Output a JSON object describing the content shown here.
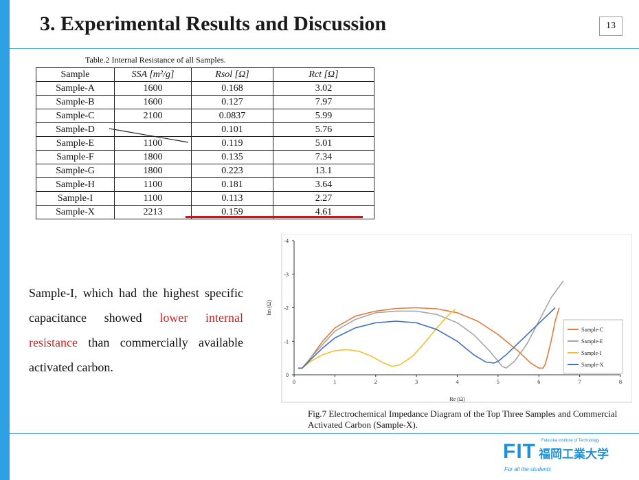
{
  "slide": {
    "title": "3. Experimental Results and Discussion",
    "page_number": "13"
  },
  "table": {
    "caption": "Table.2  Internal Resistance of all Samples.",
    "headers": [
      "Sample",
      "SSA [m²/g]",
      "Rsol  [Ω]",
      "Rct  [Ω]"
    ],
    "rows": [
      [
        "Sample-A",
        "1600",
        "0.168",
        "3.02"
      ],
      [
        "Sample-B",
        "1600",
        "0.127",
        "7.97"
      ],
      [
        "Sample-C",
        "2100",
        "0.0837",
        "5.99"
      ],
      [
        "Sample-D",
        "",
        "0.101",
        "5.76"
      ],
      [
        "Sample-E",
        "1100",
        "0.119",
        "5.01"
      ],
      [
        "Sample-F",
        "1800",
        "0.135",
        "7.34"
      ],
      [
        "Sample-G",
        "1800",
        "0.223",
        "13.1"
      ],
      [
        "Sample-H",
        "1100",
        "0.181",
        "3.64"
      ],
      [
        "Sample-I",
        "1100",
        "0.113",
        "2.27"
      ],
      [
        "Sample-X",
        "2213",
        "0.159",
        "4.61"
      ]
    ]
  },
  "body": {
    "part1": "Sample-I, which had the highest specific capacitance showed ",
    "highlight": "lower internal resistance",
    "part2": " than commercially available activated carbon."
  },
  "figure_caption": "Fig.7  Electrochemical Impedance Diagram of the Top Three Samples and Commercial Activated Carbon (Sample-X).",
  "footer": {
    "logo_text": "FIT",
    "logo_jp": "福岡工業大学",
    "logo_small": "Fukuoka Institute of Technology",
    "tagline": "For all the students"
  },
  "colors": {
    "accent": "#2ea0e4",
    "highlight": "#d21f1f",
    "red_line": "#b22222"
  },
  "chart_data": {
    "type": "line",
    "xlabel": "Re (Ω)",
    "ylabel": "Im (Ω)",
    "xlim": [
      0,
      8
    ],
    "ylim": [
      0,
      -4
    ],
    "x_ticks": [
      "0",
      "1",
      "2",
      "3",
      "4",
      "5",
      "6",
      "7",
      "8"
    ],
    "y_ticks": [
      "0",
      "-1",
      "-2",
      "-3",
      "-4"
    ],
    "legend_position": "right",
    "series": [
      {
        "name": "Sample-C",
        "color": "#e07b39",
        "x": [
          0.1,
          0.2,
          0.4,
          0.7,
          1.0,
          1.5,
          2.0,
          2.5,
          3.0,
          3.5,
          4.0,
          4.5,
          5.0,
          5.5,
          5.8,
          6.0,
          6.1,
          6.15,
          6.2,
          6.3,
          6.4,
          6.5
        ],
        "y": [
          -0.2,
          -0.2,
          -0.5,
          -1.0,
          -1.4,
          -1.75,
          -1.9,
          -1.98,
          -2.0,
          -1.97,
          -1.85,
          -1.6,
          -1.2,
          -0.7,
          -0.35,
          -0.2,
          -0.2,
          -0.3,
          -0.5,
          -1.0,
          -1.6,
          -2.0
        ]
      },
      {
        "name": "Sample-E",
        "color": "#a6a6a6",
        "x": [
          0.1,
          0.2,
          0.4,
          0.7,
          1.0,
          1.5,
          2.0,
          2.5,
          3.0,
          3.5,
          4.0,
          4.4,
          4.8,
          5.0,
          5.1,
          5.2,
          5.4,
          5.7,
          6.0,
          6.3,
          6.6
        ],
        "y": [
          -0.2,
          -0.2,
          -0.5,
          -0.9,
          -1.3,
          -1.65,
          -1.85,
          -1.9,
          -1.9,
          -1.8,
          -1.55,
          -1.2,
          -0.7,
          -0.4,
          -0.25,
          -0.2,
          -0.4,
          -0.9,
          -1.6,
          -2.3,
          -2.8
        ]
      },
      {
        "name": "Sample-I",
        "color": "#f2c12e",
        "x": [
          0.1,
          0.2,
          0.4,
          0.7,
          1.0,
          1.3,
          1.6,
          1.9,
          2.2,
          2.4,
          2.6,
          2.9,
          3.2,
          3.5,
          3.8,
          3.95
        ],
        "y": [
          -0.2,
          -0.2,
          -0.4,
          -0.6,
          -0.72,
          -0.75,
          -0.7,
          -0.55,
          -0.35,
          -0.25,
          -0.3,
          -0.55,
          -0.95,
          -1.4,
          -1.8,
          -1.95
        ]
      },
      {
        "name": "Sample-X",
        "color": "#3f6fbf",
        "x": [
          0.1,
          0.2,
          0.4,
          0.7,
          1.0,
          1.5,
          2.0,
          2.5,
          3.0,
          3.5,
          4.0,
          4.4,
          4.7,
          4.9,
          5.0,
          5.2,
          5.5,
          5.8,
          6.1,
          6.4
        ],
        "y": [
          -0.2,
          -0.2,
          -0.45,
          -0.8,
          -1.1,
          -1.4,
          -1.55,
          -1.6,
          -1.55,
          -1.35,
          -1.0,
          -0.6,
          -0.38,
          -0.35,
          -0.4,
          -0.6,
          -0.95,
          -1.3,
          -1.65,
          -2.0
        ]
      }
    ]
  }
}
